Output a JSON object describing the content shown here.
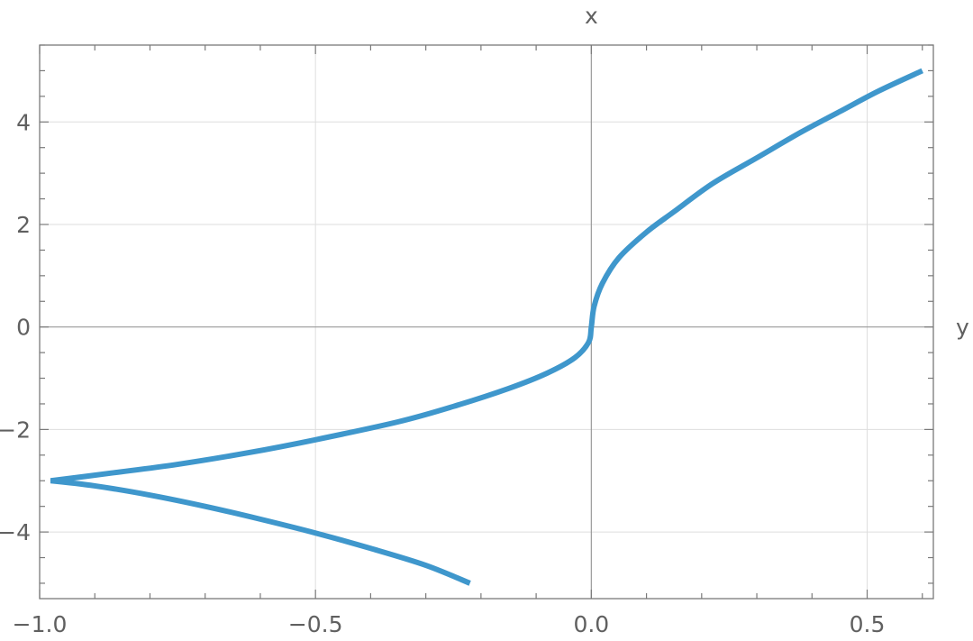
{
  "chart_data": {
    "type": "line",
    "title": "",
    "xlabel": "y",
    "ylabel": "x",
    "xlim": [
      -1.0,
      0.62
    ],
    "ylim": [
      -5.3,
      5.5
    ],
    "grid": true,
    "frame": true,
    "x_ticks": [
      -1.0,
      -0.5,
      0.0,
      0.5
    ],
    "x_tick_labels": [
      "−1.0",
      "−0.5",
      "0.0",
      "0.5"
    ],
    "y_ticks": [
      -4,
      -2,
      0,
      2,
      4
    ],
    "y_tick_labels": [
      "−4",
      "−2",
      "0",
      "2",
      "4"
    ],
    "x_minor_step": 0.1,
    "y_minor_step": 0.5,
    "series": [
      {
        "color": "#3f97cc",
        "points": [
          [
            0.6,
            5.0
          ],
          [
            0.52,
            4.6
          ],
          [
            0.45,
            4.2
          ],
          [
            0.38,
            3.8
          ],
          [
            0.3,
            3.3
          ],
          [
            0.22,
            2.8
          ],
          [
            0.15,
            2.25
          ],
          [
            0.1,
            1.85
          ],
          [
            0.05,
            1.35
          ],
          [
            0.02,
            0.85
          ],
          [
            0.005,
            0.4
          ],
          [
            0.0,
            0.0
          ],
          [
            -0.005,
            -0.3
          ],
          [
            -0.03,
            -0.6
          ],
          [
            -0.08,
            -0.9
          ],
          [
            -0.15,
            -1.2
          ],
          [
            -0.25,
            -1.55
          ],
          [
            -0.35,
            -1.85
          ],
          [
            -0.5,
            -2.2
          ],
          [
            -0.62,
            -2.45
          ],
          [
            -0.75,
            -2.68
          ],
          [
            -0.87,
            -2.85
          ],
          [
            -0.98,
            -3.0
          ],
          [
            -0.9,
            -3.1
          ],
          [
            -0.8,
            -3.28
          ],
          [
            -0.7,
            -3.5
          ],
          [
            -0.6,
            -3.75
          ],
          [
            -0.5,
            -4.02
          ],
          [
            -0.4,
            -4.32
          ],
          [
            -0.3,
            -4.65
          ],
          [
            -0.22,
            -5.0
          ]
        ]
      }
    ]
  }
}
